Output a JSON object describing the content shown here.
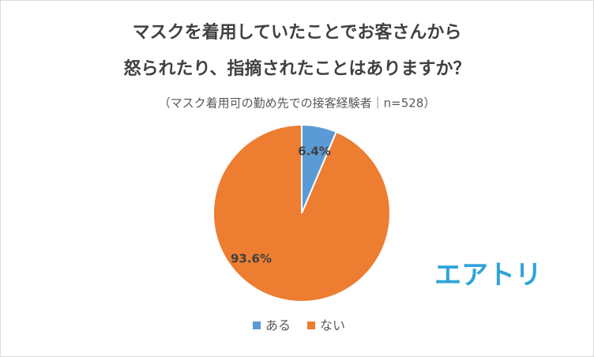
{
  "chart_data": {
    "type": "pie",
    "title": [
      "マスクを着用していたことでお客さんから",
      "怒られたり、指摘されたことはありますか？"
    ],
    "subtitle": "（マスク着用可の勤め先での接客経験者｜n=528）",
    "categories": [
      "ある",
      "ない"
    ],
    "values": [
      6.4,
      93.6
    ],
    "value_labels": [
      "6.4%",
      "93.6%"
    ],
    "colors": [
      "#5b9bd5",
      "#ed7d31"
    ],
    "legend": "bottom"
  },
  "logo": "エアトリ"
}
